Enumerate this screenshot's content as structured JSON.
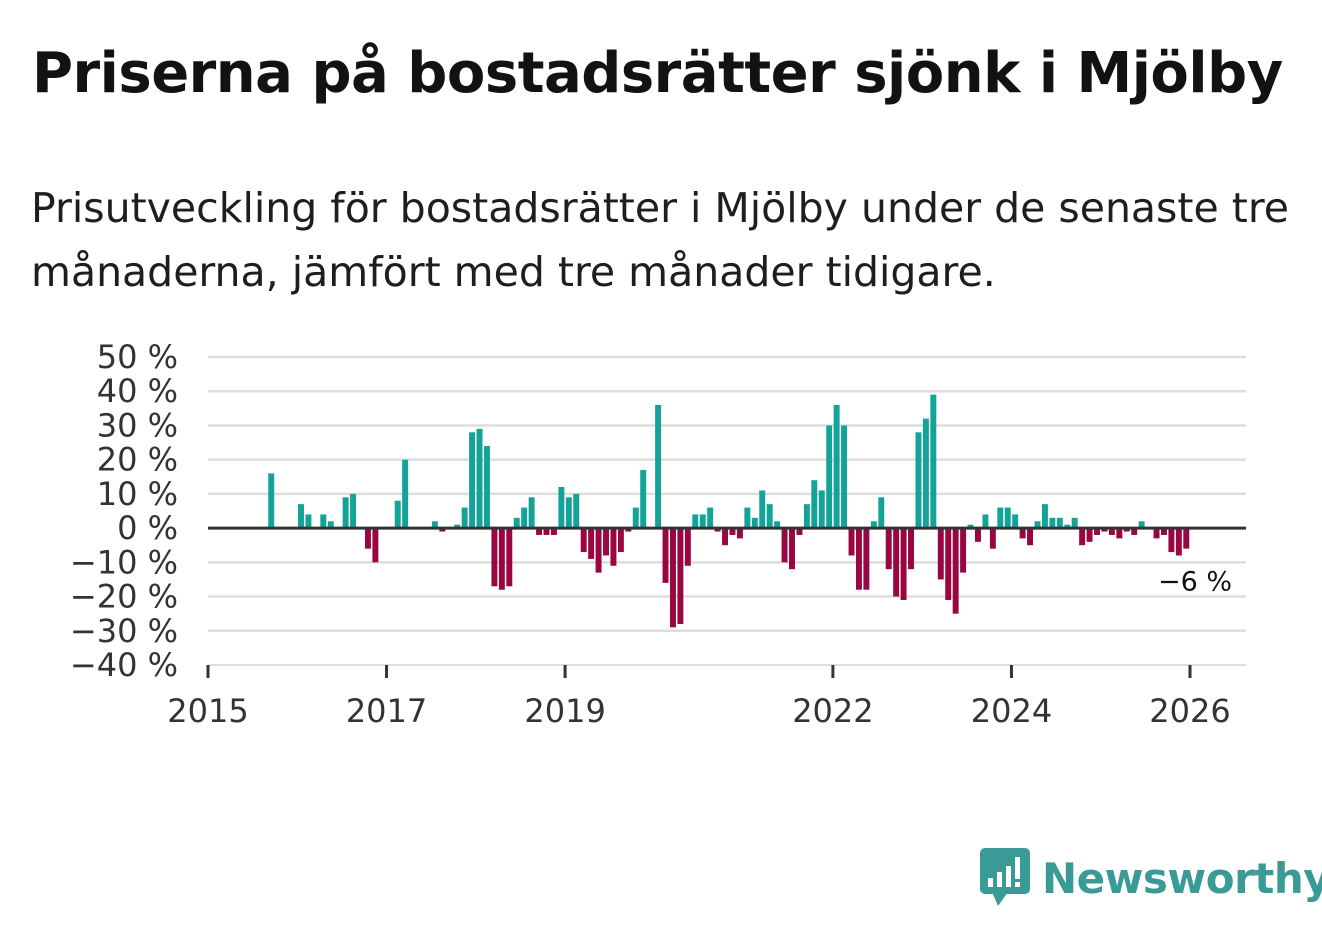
{
  "title": "Priserna på bostadsrätter sjönk i Mjölby",
  "subtitle": "Prisutveckling för bostadsrätter i Mjölby under de senaste tre månaderna, jämfört med tre månader tidigare.",
  "brand": {
    "name": "Newsworthy",
    "color": "#3a9a96"
  },
  "colors": {
    "positive": "#14a398",
    "negative": "#9a0640",
    "grid": "#dddddd",
    "zero": "#333333"
  },
  "chart_data": {
    "type": "bar",
    "x_start_year": 2015,
    "x_end_year": 2026.3,
    "ylim": [
      -40,
      50
    ],
    "yticks": [
      50,
      40,
      30,
      20,
      10,
      0,
      -10,
      -20,
      -30,
      -40
    ],
    "ytick_labels": [
      "50 %",
      "40 %",
      "30 %",
      "20 %",
      "10 %",
      "0 %",
      "−10 %",
      "−20 %",
      "−30 %",
      "−40 %"
    ],
    "xticks": [
      2015,
      2017,
      2019,
      2022,
      2024,
      2026
    ],
    "xtick_labels": [
      "2015",
      "2017",
      "2019",
      "2022",
      "2024",
      "2026"
    ],
    "last_value_label": "−6 %",
    "start_month": "2015-01",
    "monthly_values": [
      null,
      null,
      null,
      null,
      null,
      null,
      null,
      null,
      16,
      null,
      null,
      null,
      7,
      4,
      null,
      4,
      2,
      null,
      9,
      10,
      null,
      -6,
      -10,
      null,
      null,
      8,
      20,
      null,
      null,
      null,
      2,
      -1,
      null,
      1,
      6,
      28,
      29,
      24,
      -17,
      -18,
      -17,
      3,
      6,
      9,
      -2,
      -2,
      -2,
      12,
      9,
      10,
      -7,
      -9,
      -13,
      -8,
      -11,
      -7,
      -1,
      6,
      17,
      null,
      36,
      -16,
      -29,
      -28,
      -11,
      4,
      4,
      6,
      -1,
      -5,
      -2,
      -3,
      6,
      3,
      11,
      7,
      2,
      -10,
      -12,
      -2,
      7,
      14,
      11,
      30,
      36,
      30,
      -8,
      -18,
      -18,
      2,
      9,
      -12,
      -20,
      -21,
      -12,
      28,
      32,
      39,
      -15,
      -21,
      -25,
      -13,
      1,
      -4,
      4,
      -6,
      6,
      6,
      4,
      -3,
      -5,
      2,
      7,
      3,
      3,
      1,
      3,
      -5,
      -4,
      -2,
      -1,
      -2,
      -3,
      -1,
      -2,
      2,
      null,
      -3,
      -2,
      -7,
      -8,
      -6
    ]
  }
}
